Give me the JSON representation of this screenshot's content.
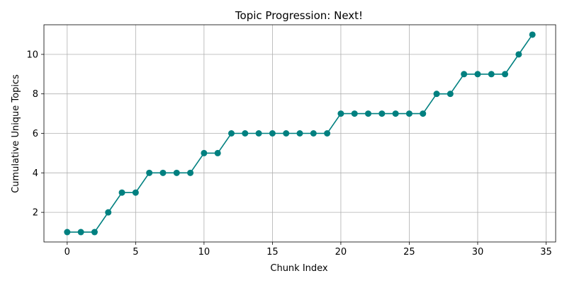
{
  "chart_data": {
    "type": "line",
    "title": "Topic Progression: Next!",
    "xlabel": "Chunk Index",
    "ylabel": "Cumulative Unique Topics",
    "xlim": [
      -1.7,
      35.7
    ],
    "ylim": [
      0.5,
      11.5
    ],
    "xticks": [
      0,
      5,
      10,
      15,
      20,
      25,
      30,
      35
    ],
    "yticks": [
      2,
      4,
      6,
      8,
      10
    ],
    "grid": true,
    "marker": "circle",
    "color": "#008080",
    "series": [
      {
        "x": [
          0,
          1,
          2,
          3,
          4,
          5,
          6,
          7,
          8,
          9,
          10,
          11,
          12,
          13,
          14,
          15,
          16,
          17,
          18,
          19,
          20,
          21,
          22,
          23,
          24,
          25,
          26,
          27,
          28,
          29,
          30,
          31,
          32,
          33,
          34
        ],
        "values": [
          1,
          1,
          1,
          2,
          3,
          3,
          4,
          4,
          4,
          4,
          5,
          5,
          6,
          6,
          6,
          6,
          6,
          6,
          6,
          6,
          7,
          7,
          7,
          7,
          7,
          7,
          7,
          8,
          8,
          9,
          9,
          9,
          9,
          10,
          11
        ]
      }
    ]
  }
}
